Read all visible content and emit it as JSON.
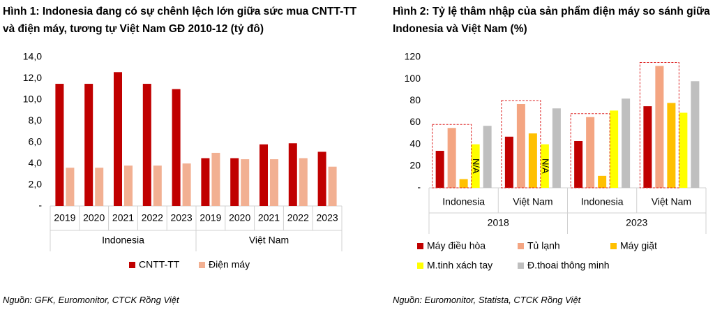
{
  "chart_data": [
    {
      "type": "bar",
      "title": "Hình 1: Indonesia đang có sự chênh lệch lớn giữa sức mua CNTT-TT và điện máy, tương tự Việt Nam GĐ 2010-12 (tỷ đô)",
      "categories": [
        "2019",
        "2020",
        "2021",
        "2022",
        "2023",
        "2019",
        "2020",
        "2021",
        "2022",
        "2023"
      ],
      "groups": [
        "Indonesia",
        "Việt Nam"
      ],
      "series": [
        {
          "name": "CNTT-TT",
          "color": "#c00000",
          "values": [
            11.5,
            11.5,
            12.6,
            11.5,
            11.0,
            4.5,
            4.5,
            5.8,
            5.9,
            5.1
          ]
        },
        {
          "name": "Điện máy",
          "color": "#f2b092",
          "values": [
            3.6,
            3.6,
            3.8,
            3.8,
            4.0,
            5.0,
            4.4,
            4.4,
            4.5,
            3.7
          ]
        }
      ],
      "ylim": [
        0,
        14
      ],
      "yticks": [
        {
          "value": 0,
          "label": "-"
        },
        {
          "value": 2,
          "label": "2,0"
        },
        {
          "value": 4,
          "label": "4,0"
        },
        {
          "value": 6,
          "label": "6,0"
        },
        {
          "value": 8,
          "label": "8,0"
        },
        {
          "value": 10,
          "label": "10,0"
        },
        {
          "value": 12,
          "label": "12,0"
        },
        {
          "value": 14,
          "label": "14,0"
        }
      ],
      "grid": false,
      "source": "Nguồn: GFK, Euromonitor, CTCK Rồng Việt"
    },
    {
      "type": "bar",
      "title": "Hình 2: Tỷ lệ thâm nhập của sản phẩm điện máy so sánh giữa Indonesia và Việt Nam (%)",
      "categories": [
        "Indonesia",
        "Việt Nam",
        "Indonesia",
        "Việt Nam"
      ],
      "groups": [
        "2018",
        "2023"
      ],
      "series": [
        {
          "name": "Máy điều hòa",
          "color": "#c00000",
          "values": [
            34,
            47,
            43,
            75
          ]
        },
        {
          "name": "Tủ lạnh",
          "color": "#f4a582",
          "values": [
            55,
            77,
            65,
            112
          ]
        },
        {
          "name": "Máy giặt",
          "color": "#ffc000",
          "values": [
            8,
            50,
            11,
            78
          ]
        },
        {
          "name": "M.tinh xách tay",
          "color": "#ffff00",
          "values": [
            40,
            40,
            71,
            69
          ]
        },
        {
          "name": "Đ.thoai thông minh",
          "color": "#bfbfbf",
          "values": [
            57,
            73,
            82,
            98
          ]
        }
      ],
      "annotations": [
        "N/A",
        "N/A"
      ],
      "ylim": [
        0,
        120
      ],
      "yticks": [
        {
          "value": 0,
          "label": "-"
        },
        20,
        40,
        60,
        80,
        100,
        120
      ],
      "grid": false,
      "source": "Nguồn: Euromonitor, Statista, CTCK Rồng Việt"
    }
  ]
}
